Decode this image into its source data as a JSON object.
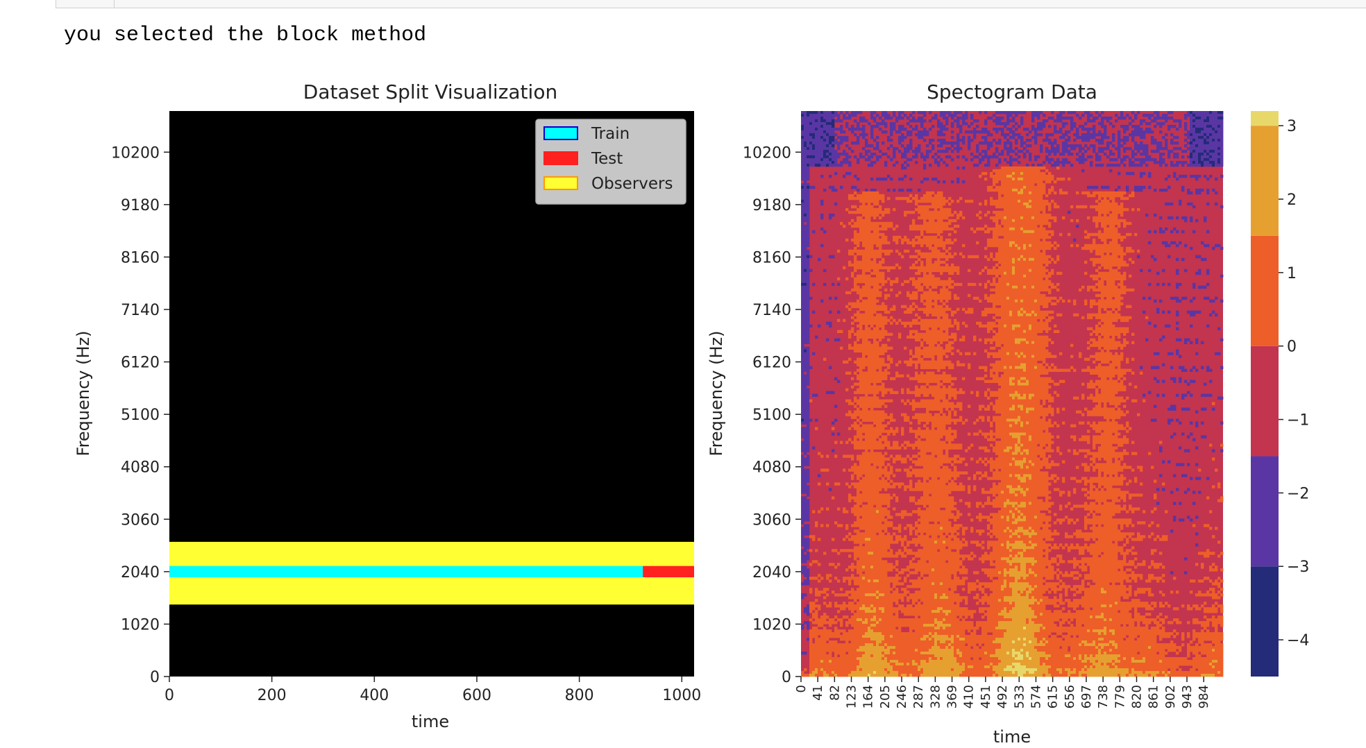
{
  "output": {
    "text": "you selected the block method"
  },
  "chart_data": [
    {
      "type": "heatmap",
      "title": "Dataset Split Visualization",
      "xlabel": "time",
      "ylabel": "Frequency (Hz)",
      "xlim": [
        0,
        1024
      ],
      "ylim": [
        0,
        11000
      ],
      "x_ticks": [
        0,
        200,
        400,
        600,
        800,
        1000
      ],
      "y_ticks": [
        0,
        1020,
        2040,
        3060,
        4080,
        5100,
        6120,
        7140,
        8160,
        9180,
        10200
      ],
      "background_color": "#000000",
      "regions": [
        {
          "name": "Observers",
          "x0": 0,
          "x1": 1024,
          "y0": 1400,
          "y1": 2620,
          "color": "#ffff33"
        },
        {
          "name": "Train",
          "x0": 0,
          "x1": 924,
          "y0": 1930,
          "y1": 2150,
          "color": "#00ffff"
        },
        {
          "name": "Test",
          "x0": 924,
          "x1": 1024,
          "y0": 1930,
          "y1": 2150,
          "color": "#ff2020"
        }
      ],
      "legend": {
        "placement": "upper right",
        "entries": [
          {
            "label": "Train",
            "color": "#00ffff",
            "edge": "#0000cc"
          },
          {
            "label": "Test",
            "color": "#ff2020",
            "edge": "#ff2020"
          },
          {
            "label": "Observers",
            "color": "#ffff33",
            "edge": "#ff9900"
          }
        ]
      }
    },
    {
      "type": "heatmap",
      "title": "Spectogram Data",
      "xlabel": "time",
      "ylabel": "Frequency (Hz)",
      "ylim": [
        0,
        11000
      ],
      "y_ticks": [
        0,
        1020,
        2040,
        3060,
        4080,
        5100,
        6120,
        7140,
        8160,
        9180,
        10200
      ],
      "x_ticks": [
        "0",
        "41",
        "82",
        "123",
        "164",
        "205",
        "246",
        "287",
        "328",
        "369",
        "410",
        "451",
        "492",
        "533",
        "574",
        "615",
        "656",
        "697",
        "738",
        "779",
        "820",
        "861",
        "902",
        "943",
        "984"
      ],
      "colorbar": {
        "range": [
          -4.5,
          3.2
        ],
        "ticks": [
          "3",
          "2",
          "1",
          "0",
          "−1",
          "−2",
          "−3",
          "−4"
        ],
        "bins": [
          {
            "from": -4.5,
            "to": -3.0,
            "color": "#242b78"
          },
          {
            "from": -3.0,
            "to": -1.5,
            "color": "#5a36a4"
          },
          {
            "from": -1.5,
            "to": 0.0,
            "color": "#c3344f"
          },
          {
            "from": 0.0,
            "to": 1.5,
            "color": "#ee5e29"
          },
          {
            "from": 1.5,
            "to": 3.0,
            "color": "#e6a030"
          },
          {
            "from": 3.0,
            "to": 3.2,
            "color": "#e8d86a"
          }
        ]
      }
    }
  ]
}
